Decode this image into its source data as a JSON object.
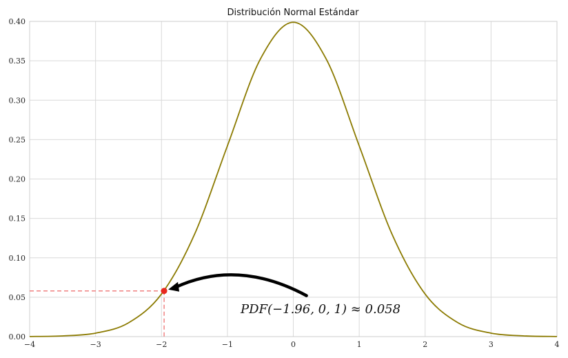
{
  "chart_data": {
    "type": "line",
    "title": "Distribución Normal Estándar",
    "xlabel": "",
    "ylabel": "",
    "xlim": [
      -4,
      4
    ],
    "ylim": [
      0,
      0.4
    ],
    "grid": true,
    "x_ticks": [
      -4,
      -3,
      -2,
      -1,
      0,
      1,
      2,
      3,
      4
    ],
    "x_tick_labels": [
      "−4",
      "−3",
      "−2",
      "−1",
      "0",
      "1",
      "2",
      "3",
      "4"
    ],
    "y_ticks": [
      0.0,
      0.05,
      0.1,
      0.15,
      0.2,
      0.25,
      0.3,
      0.35,
      0.4
    ],
    "y_tick_labels": [
      "0.00",
      "0.05",
      "0.10",
      "0.15",
      "0.20",
      "0.25",
      "0.30",
      "0.35",
      "0.40"
    ],
    "series": [
      {
        "color": "#8b7a00",
        "x": [
          -4,
          -3.5,
          -3,
          -2.5,
          -2,
          -1.5,
          -1,
          -0.5,
          0,
          0.5,
          1,
          1.5,
          2,
          2.5,
          3,
          3.5,
          4
        ],
        "y": [
          0.0001,
          0.0009,
          0.0044,
          0.0175,
          0.054,
          0.1295,
          0.242,
          0.3521,
          0.3989,
          0.3521,
          0.242,
          0.1295,
          0.054,
          0.0175,
          0.0044,
          0.0009,
          0.0001
        ]
      }
    ],
    "highlight_point": {
      "x": -1.96,
      "y": 0.058,
      "color": "#e8281e",
      "guide_color": "#f08080"
    },
    "annotation": {
      "text": "PDF(−1.96, 0, 1) ≈ 0.058",
      "text_x": -0.8,
      "text_y": 0.035,
      "arrow_start_x": 0.2,
      "arrow_start_y": 0.052,
      "arrow_end_x": -1.96,
      "arrow_end_y": 0.058
    }
  }
}
